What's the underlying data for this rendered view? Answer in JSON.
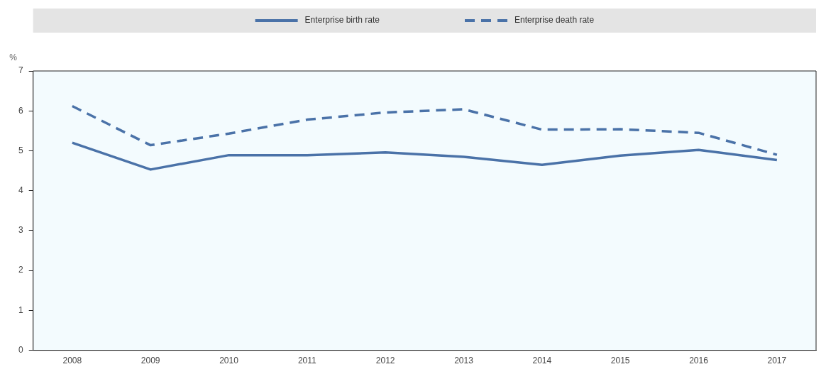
{
  "chart_data": {
    "type": "line",
    "ylabel": "%",
    "categories": [
      "2008",
      "2009",
      "2010",
      "2011",
      "2012",
      "2013",
      "2014",
      "2015",
      "2016",
      "2017"
    ],
    "series": [
      {
        "name": "Enterprise birth rate",
        "color": "#4a72a8",
        "line_style": "solid",
        "values": [
          5.2,
          4.53,
          4.89,
          4.89,
          4.96,
          4.85,
          4.65,
          4.88,
          5.02,
          4.77
        ]
      },
      {
        "name": "Enterprise death rate",
        "color": "#4a72a8",
        "line_style": "dashed",
        "values": [
          6.12,
          5.14,
          5.43,
          5.78,
          5.96,
          6.04,
          5.53,
          5.54,
          5.45,
          4.9
        ]
      }
    ],
    "ylim": [
      0,
      7
    ],
    "yticks": [
      0,
      1,
      2,
      3,
      4,
      5,
      6,
      7
    ],
    "grid": false,
    "legend": "top",
    "marker": "none"
  }
}
